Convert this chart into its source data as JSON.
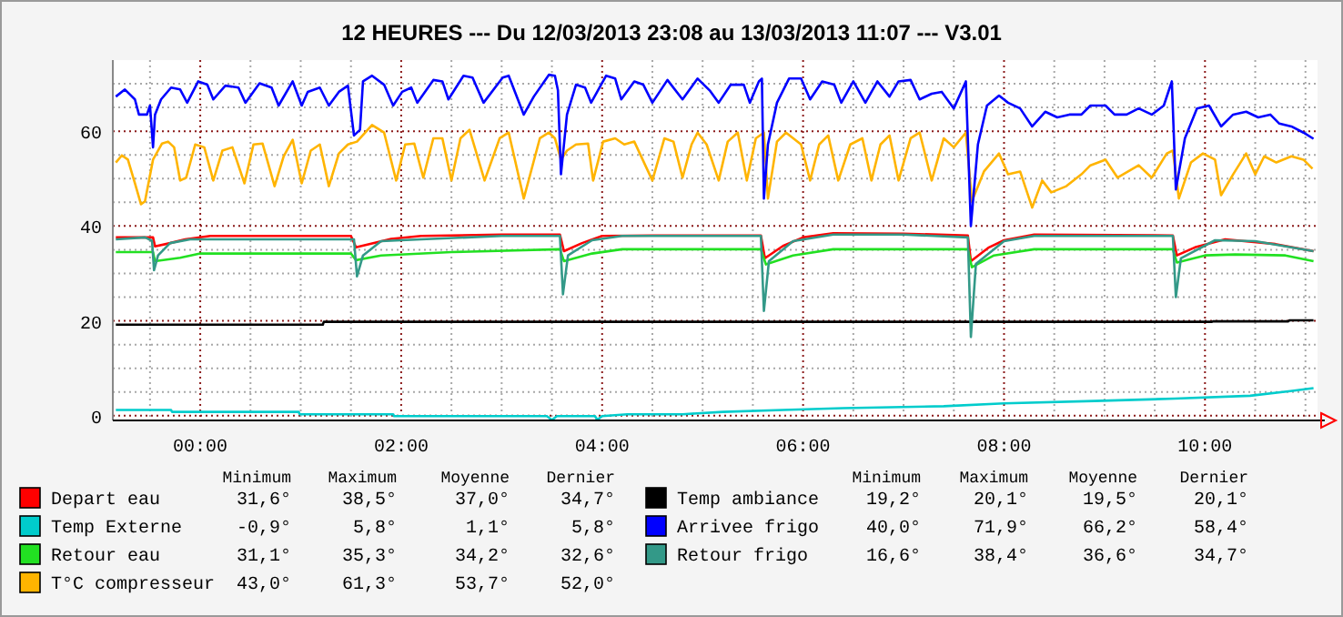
{
  "chart_data": {
    "type": "line",
    "title": "12 HEURES --- Du 12/03/2013 23:08 au 13/03/2013 11:07 --- V3.01",
    "xlim": [
      -0.87,
      11.12
    ],
    "ylim": [
      -1,
      75
    ],
    "xticks": [
      {
        "value": -0.5,
        "label": null
      },
      {
        "value": 0,
        "label": "00:00"
      },
      {
        "value": 0.5,
        "label": null
      },
      {
        "value": 1,
        "label": null
      },
      {
        "value": 1.5,
        "label": null
      },
      {
        "value": 2,
        "label": "02:00"
      },
      {
        "value": 2.5,
        "label": null
      },
      {
        "value": 3,
        "label": null
      },
      {
        "value": 3.5,
        "label": null
      },
      {
        "value": 4,
        "label": "04:00"
      },
      {
        "value": 4.5,
        "label": null
      },
      {
        "value": 5,
        "label": null
      },
      {
        "value": 5.5,
        "label": null
      },
      {
        "value": 6,
        "label": "06:00"
      },
      {
        "value": 6.5,
        "label": null
      },
      {
        "value": 7,
        "label": null
      },
      {
        "value": 7.5,
        "label": null
      },
      {
        "value": 8,
        "label": "08:00"
      },
      {
        "value": 8.5,
        "label": null
      },
      {
        "value": 9,
        "label": null
      },
      {
        "value": 9.5,
        "label": null
      },
      {
        "value": 10,
        "label": "10:00"
      },
      {
        "value": 10.5,
        "label": null
      },
      {
        "value": 11,
        "label": null
      }
    ],
    "yticks": [
      0,
      {
        "value": 5,
        "label": null
      },
      {
        "value": 10,
        "label": null
      },
      {
        "value": 15,
        "label": null
      },
      20,
      {
        "value": 25,
        "label": null
      },
      {
        "value": 30,
        "label": null
      },
      {
        "value": 35,
        "label": null
      },
      40,
      {
        "value": 45,
        "label": null
      },
      {
        "value": 50,
        "label": null
      },
      {
        "value": 55,
        "label": null
      },
      60,
      {
        "value": 65,
        "label": null
      },
      {
        "value": 70,
        "label": null
      }
    ],
    "grid": true,
    "legend": "bottom",
    "marker": "none",
    "line_style": "solid",
    "annotations": [
      "Minimum",
      "Maximum",
      "Moyenne",
      "Dernier",
      "Minimum",
      "Maximum",
      "Moyenne",
      "Dernier",
      "31,6°",
      "38,5°",
      "37,0°",
      "34,7°",
      "-0,9°",
      "5,8°",
      "1,1°",
      "5,8°",
      "31,1°",
      "35,3°",
      "34,2°",
      "32,6°",
      "43,0°",
      "61,3°",
      "53,7°",
      "52,0°",
      "19,2°",
      "20,1°",
      "19,5°",
      "20,1°",
      "40,0°",
      "71,9°",
      "66,2°",
      "58,4°",
      "16,6°",
      "38,4°",
      "36,6°",
      "34,7°"
    ],
    "series": [
      {
        "name": "Depart eau",
        "color": "#ff0000",
        "x": [
          -0.84,
          -0.47,
          -0.45,
          -0.3,
          -0.15,
          0.1,
          1.5,
          1.55,
          1.9,
          2.2,
          3.0,
          3.58,
          3.62,
          3.8,
          4.0,
          4.5,
          5.58,
          5.62,
          5.8,
          6.0,
          6.3,
          7.0,
          7.64,
          7.67,
          7.85,
          8.0,
          8.3,
          9.68,
          9.72,
          9.9,
          10.2,
          10.7,
          11.08
        ],
        "values": [
          37.6,
          37.6,
          35.7,
          36.4,
          37.2,
          37.9,
          37.9,
          35.5,
          37.3,
          37.9,
          38.2,
          38.2,
          34.7,
          36.4,
          37.9,
          38.0,
          38.0,
          33.2,
          35.8,
          37.6,
          38.5,
          38.4,
          38.0,
          32.6,
          35.5,
          37.0,
          38.2,
          38.0,
          33.8,
          35.5,
          37.2,
          36.2,
          34.7
        ]
      },
      {
        "name": "Temp Externe",
        "color": "#00cccc",
        "x": [
          -0.84,
          -0.29,
          -0.28,
          0.98,
          0.99,
          1.92,
          1.93,
          3.45,
          3.5,
          3.55,
          3.93,
          3.95,
          4.0,
          4.25,
          4.8,
          5.2,
          5.8,
          6.4,
          7.4,
          8.0,
          8.9,
          9.7,
          10.45,
          10.85,
          11.08
        ],
        "values": [
          1.2,
          1.2,
          0.8,
          0.8,
          0.3,
          0.3,
          -0.1,
          -0.1,
          -0.9,
          -0.1,
          -0.1,
          -0.9,
          -0.1,
          0.3,
          0.3,
          0.8,
          1.2,
          1.6,
          2.0,
          2.6,
          3.1,
          3.6,
          4.2,
          5.2,
          5.8
        ]
      },
      {
        "name": "Retour eau",
        "color": "#22e022",
        "x": [
          -0.84,
          -0.47,
          -0.45,
          -0.2,
          0.0,
          1.5,
          1.55,
          1.8,
          2.5,
          3.58,
          3.62,
          3.9,
          4.2,
          5.58,
          5.63,
          5.9,
          6.3,
          7.64,
          7.68,
          7.9,
          8.3,
          9.68,
          9.72,
          10.0,
          10.3,
          10.8,
          11.08
        ],
        "values": [
          34.5,
          34.5,
          32.6,
          33.3,
          34.2,
          34.2,
          32.8,
          33.8,
          34.5,
          35.1,
          32.6,
          34.2,
          35.1,
          35.1,
          31.9,
          33.8,
          35.1,
          35.1,
          31.3,
          33.8,
          35.1,
          35.1,
          32.3,
          33.8,
          34.0,
          33.8,
          32.6
        ]
      },
      {
        "name": "T°C compresseur",
        "color": "#ffb400",
        "x": [
          -0.84,
          -0.78,
          -0.72,
          -0.65,
          -0.59,
          -0.55,
          -0.47,
          -0.38,
          -0.32,
          -0.26,
          -0.2,
          -0.14,
          -0.05,
          0.04,
          0.13,
          0.22,
          0.32,
          0.44,
          0.53,
          0.62,
          0.74,
          0.83,
          0.92,
          1.01,
          1.1,
          1.19,
          1.28,
          1.38,
          1.47,
          1.56,
          1.71,
          1.83,
          1.95,
          2.04,
          2.13,
          2.22,
          2.32,
          2.41,
          2.5,
          2.59,
          2.68,
          2.83,
          2.98,
          3.07,
          3.22,
          3.38,
          3.47,
          3.53,
          3.59,
          3.65,
          3.74,
          3.86,
          3.91,
          4.01,
          4.13,
          4.22,
          4.32,
          4.5,
          4.62,
          4.71,
          4.8,
          4.89,
          4.95,
          5.04,
          5.16,
          5.25,
          5.35,
          5.44,
          5.53,
          5.61,
          5.65,
          5.74,
          5.83,
          5.98,
          6.07,
          6.16,
          6.25,
          6.35,
          6.47,
          6.59,
          6.68,
          6.77,
          6.86,
          6.95,
          7.07,
          7.16,
          7.28,
          7.4,
          7.5,
          7.62,
          7.68,
          7.8,
          7.95,
          8.04,
          8.16,
          8.28,
          8.38,
          8.47,
          8.62,
          8.77,
          8.86,
          9.01,
          9.13,
          9.34,
          9.47,
          9.62,
          9.68,
          9.74,
          9.86,
          9.98,
          10.1,
          10.16,
          10.28,
          10.41,
          10.5,
          10.59,
          10.71,
          10.86,
          10.98,
          11.07
        ],
        "values": [
          53.4,
          54.9,
          54.0,
          49.0,
          44.6,
          45.2,
          54.0,
          57.4,
          57.8,
          56.6,
          49.6,
          50.2,
          57.2,
          56.6,
          49.6,
          55.9,
          56.6,
          49.0,
          57.2,
          57.4,
          48.4,
          54.7,
          58.2,
          49.0,
          55.9,
          57.2,
          48.4,
          55.3,
          57.2,
          57.8,
          61.3,
          59.7,
          49.6,
          57.2,
          57.4,
          50.2,
          58.5,
          58.5,
          49.6,
          58.5,
          60.3,
          49.6,
          58.5,
          59.7,
          45.8,
          58.5,
          59.7,
          58.5,
          54.0,
          55.9,
          57.2,
          57.4,
          49.6,
          57.8,
          58.5,
          57.2,
          57.8,
          49.6,
          58.5,
          57.8,
          50.2,
          57.2,
          59.7,
          57.2,
          49.6,
          57.8,
          59.7,
          49.6,
          58.5,
          59.7,
          45.8,
          57.8,
          59.7,
          57.2,
          49.6,
          57.2,
          59.1,
          49.6,
          57.2,
          58.5,
          49.6,
          57.2,
          59.1,
          49.6,
          58.5,
          59.7,
          49.6,
          58.5,
          56.6,
          59.7,
          45.2,
          51.5,
          55.3,
          50.9,
          51.5,
          43.9,
          49.6,
          47.1,
          48.4,
          50.9,
          52.8,
          54.0,
          50.2,
          52.8,
          50.2,
          55.3,
          55.9,
          45.8,
          53.4,
          55.3,
          54.0,
          46.5,
          50.9,
          55.3,
          50.9,
          54.7,
          53.4,
          54.7,
          54.0,
          52.1
        ]
      },
      {
        "name": "Temp ambiance",
        "color": "#000000",
        "x": [
          -0.84,
          1.22,
          1.23,
          10.07,
          10.08,
          10.83,
          10.84,
          11.08
        ],
        "values": [
          19.2,
          19.2,
          19.8,
          19.8,
          19.9,
          19.9,
          20.1,
          20.1
        ]
      },
      {
        "name": "Arrivee frigo",
        "color": "#0000ff",
        "x": [
          -0.84,
          -0.75,
          -0.65,
          -0.61,
          -0.53,
          -0.5,
          -0.47,
          -0.45,
          -0.39,
          -0.29,
          -0.2,
          -0.13,
          -0.02,
          0.07,
          0.13,
          0.25,
          0.38,
          0.45,
          0.59,
          0.71,
          0.78,
          0.92,
          1.01,
          1.07,
          1.19,
          1.28,
          1.38,
          1.47,
          1.53,
          1.59,
          1.62,
          1.71,
          1.83,
          1.92,
          2.01,
          2.1,
          2.16,
          2.32,
          2.41,
          2.47,
          2.62,
          2.71,
          2.82,
          3.01,
          3.07,
          3.22,
          3.32,
          3.47,
          3.53,
          3.56,
          3.59,
          3.65,
          3.74,
          3.83,
          3.89,
          4.04,
          4.13,
          4.19,
          4.32,
          4.41,
          4.5,
          4.65,
          4.8,
          4.95,
          5.07,
          5.16,
          5.28,
          5.41,
          5.47,
          5.56,
          5.59,
          5.61,
          5.65,
          5.74,
          5.86,
          5.98,
          6.07,
          6.19,
          6.31,
          6.38,
          6.5,
          6.62,
          6.74,
          6.86,
          6.95,
          7.07,
          7.16,
          7.28,
          7.38,
          7.5,
          7.62,
          7.67,
          7.74,
          7.83,
          7.95,
          8.04,
          8.16,
          8.28,
          8.41,
          8.53,
          8.65,
          8.77,
          8.86,
          9.01,
          9.1,
          9.22,
          9.34,
          9.47,
          9.59,
          9.67,
          9.71,
          9.8,
          9.92,
          10.04,
          10.16,
          10.28,
          10.41,
          10.53,
          10.65,
          10.74,
          10.86,
          10.98,
          11.08
        ],
        "values": [
          67.3,
          68.8,
          66.7,
          63.5,
          63.5,
          65.4,
          56.6,
          63.5,
          66.7,
          69.2,
          68.8,
          66.0,
          70.5,
          69.8,
          66.7,
          69.6,
          69.2,
          66.0,
          70.1,
          69.2,
          65.4,
          70.5,
          65.4,
          68.3,
          69.2,
          65.4,
          68.3,
          69.6,
          59.1,
          60.3,
          70.5,
          71.7,
          69.8,
          65.4,
          68.3,
          69.2,
          66.0,
          70.8,
          70.5,
          66.7,
          71.7,
          71.3,
          66.0,
          71.3,
          71.7,
          63.5,
          67.3,
          71.9,
          71.7,
          68.6,
          50.9,
          63.5,
          69.8,
          69.2,
          66.0,
          71.7,
          71.1,
          66.7,
          70.5,
          69.8,
          66.0,
          70.8,
          66.7,
          71.1,
          68.6,
          66.0,
          69.8,
          69.8,
          66.0,
          70.5,
          71.1,
          45.8,
          57.2,
          66.0,
          71.1,
          71.1,
          66.7,
          70.5,
          69.8,
          66.0,
          70.5,
          66.0,
          70.5,
          67.3,
          70.5,
          70.8,
          66.7,
          67.9,
          68.3,
          64.8,
          70.5,
          40.0,
          57.2,
          65.4,
          67.5,
          66.0,
          64.8,
          61.0,
          64.1,
          62.9,
          63.5,
          63.5,
          65.4,
          65.4,
          63.5,
          63.5,
          64.8,
          63.5,
          65.4,
          70.5,
          47.7,
          58.5,
          64.8,
          65.4,
          61.0,
          63.5,
          64.1,
          62.9,
          63.5,
          61.6,
          61.0,
          59.7,
          58.4
        ]
      },
      {
        "name": "Retour frigo",
        "color": "#339988",
        "x": [
          -0.84,
          -0.55,
          -0.48,
          -0.46,
          -0.42,
          -0.3,
          -0.1,
          1.53,
          1.56,
          1.62,
          1.8,
          2.2,
          3.0,
          3.58,
          3.61,
          3.66,
          3.9,
          4.2,
          5.58,
          5.61,
          5.66,
          5.9,
          6.3,
          7.0,
          7.64,
          7.67,
          7.72,
          8.0,
          8.3,
          9.68,
          9.71,
          9.76,
          10.1,
          10.5,
          11.08
        ],
        "values": [
          37.2,
          37.6,
          36.9,
          30.7,
          33.8,
          36.4,
          37.2,
          37.2,
          29.4,
          33.8,
          36.8,
          37.2,
          37.9,
          37.9,
          25.6,
          33.8,
          37.0,
          37.9,
          37.9,
          22.1,
          32.6,
          36.8,
          38.2,
          38.2,
          37.6,
          16.6,
          32.0,
          36.8,
          37.9,
          37.9,
          25.0,
          33.2,
          37.0,
          36.8,
          34.7
        ]
      }
    ]
  }
}
